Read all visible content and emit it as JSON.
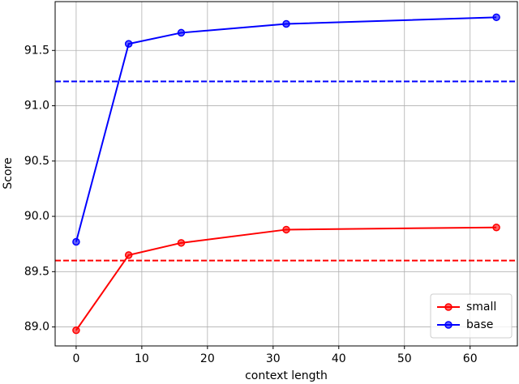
{
  "chart_data": {
    "type": "line",
    "x_label": "context length",
    "y_label": "Score",
    "x": [
      0,
      8,
      16,
      32,
      64
    ],
    "series": [
      {
        "name": "small",
        "color": "#ff0000",
        "values": [
          88.97,
          89.65,
          89.76,
          89.88,
          89.9
        ]
      },
      {
        "name": "base",
        "color": "#0000ff",
        "values": [
          89.77,
          91.56,
          91.66,
          91.74,
          91.8
        ]
      }
    ],
    "reference_lines": [
      {
        "value": 91.22,
        "color": "#0000ff",
        "style": "dashed"
      },
      {
        "value": 89.6,
        "color": "#ff0000",
        "style": "dashed"
      }
    ],
    "xlim": [
      -3.2,
      67.2
    ],
    "xticks": [
      0,
      10,
      20,
      30,
      40,
      50,
      60
    ],
    "ylim": [
      88.8285,
      91.9415
    ],
    "yticks": [
      {
        "value": 89.0,
        "label": "89.0"
      },
      {
        "value": 89.5,
        "label": "89.5"
      },
      {
        "value": 90.0,
        "label": "90.0"
      },
      {
        "value": 90.5,
        "label": "90.5"
      },
      {
        "value": 91.0,
        "label": "91.0"
      },
      {
        "value": 91.5,
        "label": "91.5"
      }
    ],
    "grid": true,
    "legend": "lower right"
  }
}
